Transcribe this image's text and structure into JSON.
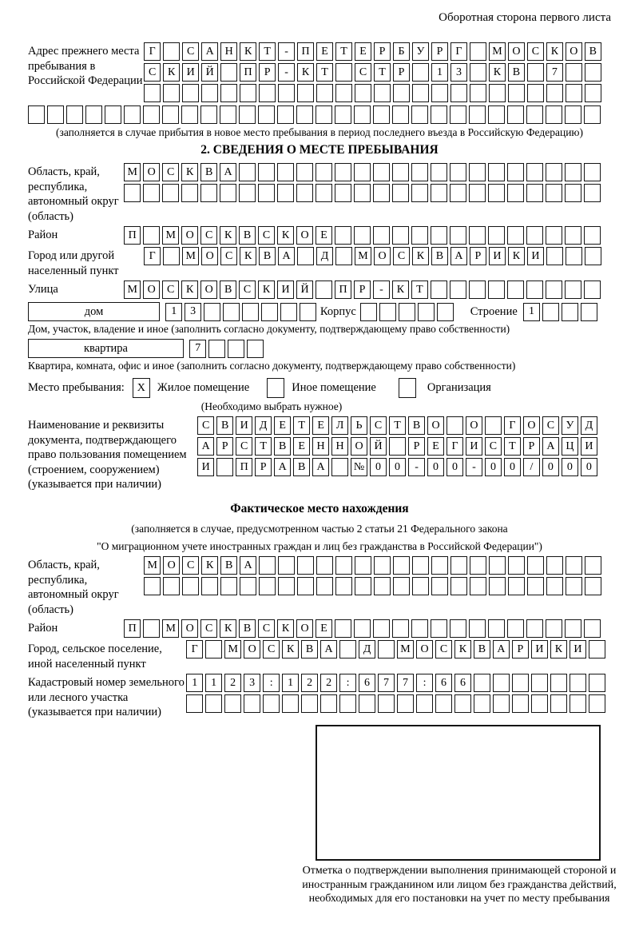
{
  "page": {
    "header_note": "Оборотная сторона первого листа"
  },
  "prev_address": {
    "label": "Адрес прежнего места пребывания в Российской Федерации",
    "rows": [
      {
        "text": "Г САНКТ-ПЕТЕРБУРГ МОСКОВ",
        "len": 24
      },
      {
        "text": "СКИЙ ПР-КТ СТР 13 КВ 7",
        "len": 24
      },
      {
        "text": "",
        "len": 24
      },
      {
        "text": "",
        "len": 30
      }
    ],
    "note": "(заполняется в случае прибытия в новое место пребывания в период последнего въезда в Российскую Федерацию)"
  },
  "section2": {
    "heading": "2. СВЕДЕНИЯ О МЕСТЕ ПРЕБЫВАНИЯ",
    "region": {
      "label": "Область, край, республика, автономный округ (область)",
      "rows": [
        {
          "text": "МОСКВА",
          "len": 25
        },
        {
          "text": "",
          "len": 25
        }
      ]
    },
    "district": {
      "label": "Район",
      "row": {
        "text": "П МОСКВСКОЕ",
        "len": 25
      }
    },
    "city": {
      "label": "Город или другой населенный пункт",
      "row": {
        "text": "Г МОСКВА Д МОСКВАРИКИ",
        "len": 24
      }
    },
    "street": {
      "label": "Улица",
      "row": {
        "text": "МОСКОВСКИЙ ПР-КТ",
        "len": 25
      }
    },
    "house": {
      "box_label": "дом",
      "cells": {
        "text": "13",
        "len": 8
      },
      "korpus_label": "Корпус",
      "korpus_cells": {
        "text": "",
        "len": 5
      },
      "stroenie_label": "Строение",
      "stroenie_cells": {
        "text": "1",
        "len": 4
      }
    },
    "house_note": "Дом, участок, владение и иное (заполнить согласно документу, подтверждающему право собственности)",
    "apartment": {
      "box_label": "квартира",
      "cells": {
        "text": "7",
        "len": 4
      }
    },
    "apartment_note": "Квартира, комната, офис и иное (заполнить согласно документу, подтверждающему право собственности)",
    "stay_type": {
      "label": "Место пребывания:",
      "options": [
        {
          "label": "Жилое помещение",
          "mark": "X"
        },
        {
          "label": "Иное помещение",
          "mark": ""
        },
        {
          "label": "Организация",
          "mark": ""
        }
      ],
      "note": "(Необходимо выбрать нужное)"
    },
    "ownership_doc": {
      "label": "Наименование и реквизиты документа, подтверждающего право пользования помещением (строением, сооружением) (указывается при наличии)",
      "rows": [
        {
          "text": "СВИДЕТЕЛЬСТВО О ГОСУД",
          "len": 21
        },
        {
          "text": "АРСТВЕННОЙ РЕГИСТРАЦИ",
          "len": 21
        },
        {
          "text": "И ПРАВА №00-00-00/000",
          "len": 21
        }
      ]
    }
  },
  "actual_location": {
    "heading": "Фактическое место нахождения",
    "note_line1": "(заполняется в случае, предусмотренном частью 2 статьи 21 Федерального закона",
    "note_line2": "\"О миграционном учете иностранных граждан и лиц без гражданства в Российской Федерации\")",
    "region": {
      "label": "Область, край, республика, автономный округ (область)",
      "rows": [
        {
          "text": "МОСКВА",
          "len": 24
        },
        {
          "text": "",
          "len": 24
        }
      ]
    },
    "district": {
      "label": "Район",
      "row": {
        "text": "П МОСКВСКОЕ",
        "len": 25
      }
    },
    "city": {
      "label": "Город, сельское поселение, иной населенный пункт",
      "row": {
        "text": "Г МОСКВА Д МОСКВАРИКИ",
        "len": 22
      }
    },
    "cadastral": {
      "label": "Кадастровый номер земельного или лесного участка (указывается при наличии)",
      "rows": [
        {
          "text": "1123:122:677:66",
          "len": 22
        },
        {
          "text": "",
          "len": 22
        }
      ]
    },
    "stamp_caption": "Отметка о подтверждении выполнения принимающей стороной и иностранным гражданином или лицом без гражданства действий, необходимых для его постановки на учет по месту пребывания"
  }
}
